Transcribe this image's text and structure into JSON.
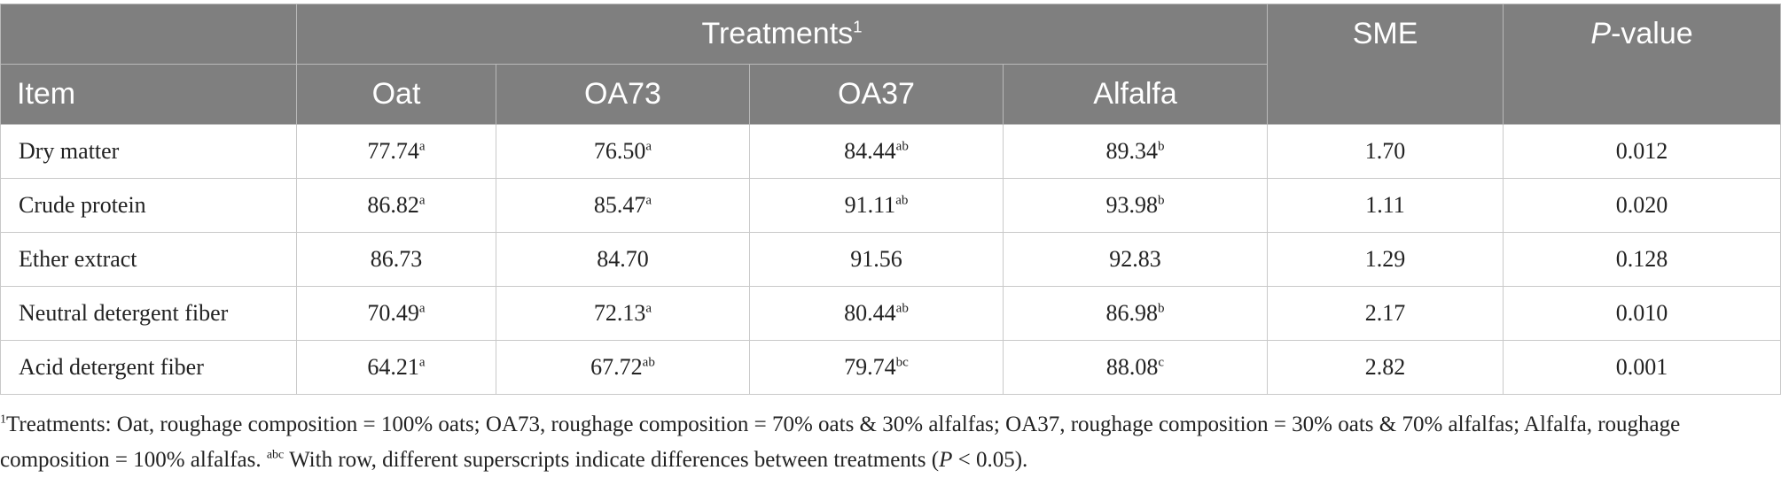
{
  "header": {
    "treatments": "Treatments",
    "treatments_note": "1",
    "sme": "SME",
    "pvalue_italic": "P",
    "pvalue_rest": "-value",
    "item": "Item",
    "columns": [
      "Oat",
      "OA73",
      "OA37",
      "Alfalfa"
    ]
  },
  "rows": [
    {
      "item": "Dry matter",
      "values": [
        {
          "v": "77.74",
          "s": "a"
        },
        {
          "v": "76.50",
          "s": "a"
        },
        {
          "v": "84.44",
          "s": "ab"
        },
        {
          "v": "89.34",
          "s": "b"
        }
      ],
      "sme": "1.70",
      "p": "0.012"
    },
    {
      "item": "Crude protein",
      "values": [
        {
          "v": "86.82",
          "s": "a"
        },
        {
          "v": "85.47",
          "s": "a"
        },
        {
          "v": "91.11",
          "s": "ab"
        },
        {
          "v": "93.98",
          "s": "b"
        }
      ],
      "sme": "1.11",
      "p": "0.020"
    },
    {
      "item": "Ether extract",
      "values": [
        {
          "v": "86.73",
          "s": ""
        },
        {
          "v": "84.70",
          "s": ""
        },
        {
          "v": "91.56",
          "s": ""
        },
        {
          "v": "92.83",
          "s": ""
        }
      ],
      "sme": "1.29",
      "p": "0.128"
    },
    {
      "item": "Neutral detergent fiber",
      "values": [
        {
          "v": "70.49",
          "s": "a"
        },
        {
          "v": "72.13",
          "s": "a"
        },
        {
          "v": "80.44",
          "s": "ab"
        },
        {
          "v": "86.98",
          "s": "b"
        }
      ],
      "sme": "2.17",
      "p": "0.010"
    },
    {
      "item": "Acid detergent fiber",
      "values": [
        {
          "v": "64.21",
          "s": "a"
        },
        {
          "v": "67.72",
          "s": "ab"
        },
        {
          "v": "79.74",
          "s": "bc"
        },
        {
          "v": "88.08",
          "s": "c"
        }
      ],
      "sme": "2.82",
      "p": "0.001"
    }
  ],
  "footnote": {
    "mark1": "1",
    "text1": "Treatments: Oat, roughage composition = 100% oats; OA73, roughage composition = 70% oats & 30% alfalfas; OA37, roughage composition = 30% oats & 70% alfalfas; Alfalfa, roughage composition = 100% alfalfas.",
    "mark2": "abc",
    "text2_before": " With row, different superscripts indicate differences between treatments (",
    "text2_p": "P",
    "text2_after": " < 0.05)."
  }
}
